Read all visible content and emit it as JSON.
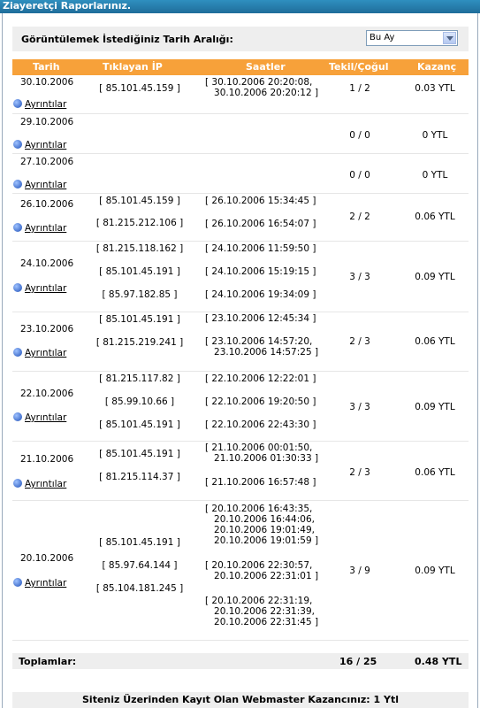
{
  "title": "Ziayeretçi Raporlarınız.",
  "range": {
    "label": "Görüntülemek İstediğiniz Tarih Aralığı:",
    "selected": "Bu Ay"
  },
  "headers": {
    "date": "Tarih",
    "ip": "Tıklayan İP",
    "times": "Saatler",
    "tekil": "Tekil/Çoğul",
    "kazanc": "Kazanç"
  },
  "detail_label": "Ayrıntılar",
  "rows": [
    {
      "date": "30.10.2006",
      "ips": [
        "[ 85.101.45.159 ]"
      ],
      "times": [
        "[ 30.10.2006 20:20:08,\n   30.10.2006 20:20:12 ]"
      ],
      "tekil": "1 / 2",
      "kazanc": "0.03 YTL"
    },
    {
      "date": "29.10.2006",
      "ips": [],
      "times": [],
      "tekil": "0 / 0",
      "kazanc": "0 YTL"
    },
    {
      "date": "27.10.2006",
      "ips": [],
      "times": [],
      "tekil": "0 / 0",
      "kazanc": "0 YTL"
    },
    {
      "date": "26.10.2006",
      "ips": [
        "[ 85.101.45.159 ]",
        "[ 81.215.212.106 ]"
      ],
      "times": [
        "[ 26.10.2006 15:34:45 ]",
        "[ 26.10.2006 16:54:07 ]"
      ],
      "tekil": "2 / 2",
      "kazanc": "0.06 YTL"
    },
    {
      "date": "24.10.2006",
      "ips": [
        "[ 81.215.118.162 ]",
        "[ 85.101.45.191 ]",
        "[ 85.97.182.85 ]"
      ],
      "times": [
        "[ 24.10.2006 11:59:50 ]",
        "[ 24.10.2006 15:19:15 ]",
        "[ 24.10.2006 19:34:09 ]"
      ],
      "tekil": "3 / 3",
      "kazanc": "0.09 YTL"
    },
    {
      "date": "23.10.2006",
      "ips": [
        "[ 85.101.45.191 ]",
        "[ 81.215.219.241 ]"
      ],
      "times": [
        "[ 23.10.2006 12:45:34 ]",
        "[ 23.10.2006 14:57:20,\n   23.10.2006 14:57:25 ]"
      ],
      "tekil": "2 / 3",
      "kazanc": "0.06 YTL"
    },
    {
      "date": "22.10.2006",
      "ips": [
        "[ 81.215.117.82 ]",
        "[ 85.99.10.66 ]",
        "[ 85.101.45.191 ]"
      ],
      "times": [
        "[ 22.10.2006 12:22:01 ]",
        "[ 22.10.2006 19:20:50 ]",
        "[ 22.10.2006 22:43:30 ]"
      ],
      "tekil": "3 / 3",
      "kazanc": "0.09 YTL"
    },
    {
      "date": "21.10.2006",
      "ips": [
        "[ 85.101.45.191 ]",
        "[ 81.215.114.37 ]"
      ],
      "times": [
        "[ 21.10.2006 00:01:50,\n   21.10.2006 01:30:33 ]",
        "[ 21.10.2006 16:57:48 ]"
      ],
      "tekil": "2 / 3",
      "kazanc": "0.06 YTL"
    },
    {
      "date": "20.10.2006",
      "ips": [
        "[ 85.101.45.191 ]",
        "[ 85.97.64.144 ]",
        "[ 85.104.181.245 ]"
      ],
      "times": [
        "[ 20.10.2006 16:43:35,\n   20.10.2006 16:44:06,\n   20.10.2006 19:01:49,\n   20.10.2006 19:01:59 ]",
        "[ 20.10.2006 22:30:57,\n   20.10.2006 22:31:01 ]",
        "[ 20.10.2006 22:31:19,\n   20.10.2006 22:31:39,\n   20.10.2006 22:31:45 ]"
      ],
      "tekil": "3 / 9",
      "kazanc": "0.09 YTL"
    }
  ],
  "totals": {
    "label": "Toplamlar:",
    "tekil": "16 / 25",
    "kazanc": "0.48 YTL"
  },
  "footer": "Siteniz Üzerinden Kayıt Olan Webmaster Kazancınız: 1 Ytl"
}
